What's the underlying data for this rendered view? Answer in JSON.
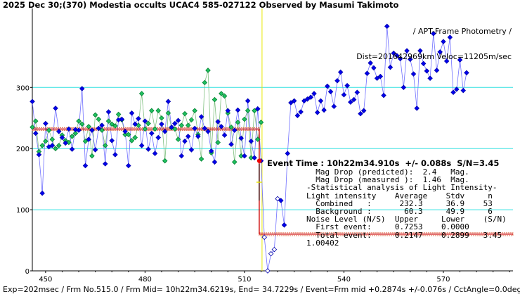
{
  "chart_data": {
    "type": "scatter",
    "title": "2025 Dec 30;(370) Modestia occults UCAC4 585-027122 Observed by Masumi Takimoto",
    "subtitle_lines": [
      "/ APT-Frame Photometry /",
      "Dist=201642969km Veloc=11205m/sec"
    ],
    "footer": "Exp=202msec / Frm No.515.0 / Frm Mid= 10h22m34.6219s, End= 34.7229s / Event=Frm mid +0.2874s +/-0.076s / CctAngle=0.0deg",
    "xlim": [
      446,
      591
    ],
    "ylim": [
      0,
      420
    ],
    "x_ticks": [
      450,
      480,
      510,
      540,
      570
    ],
    "y_ticks": [
      0,
      100,
      200,
      300
    ],
    "grid_y": true,
    "series": [
      {
        "role": "combined",
        "color": "#0000ff",
        "x": [
          446,
          447,
          448,
          449,
          450,
          451,
          452,
          453,
          454,
          455,
          456,
          457,
          458,
          459,
          460,
          461,
          462,
          463,
          464,
          465,
          466,
          467,
          468,
          469,
          470,
          471,
          472,
          473,
          474,
          475,
          476,
          477,
          478,
          479,
          480,
          481,
          482,
          483,
          484,
          485,
          486,
          487,
          488,
          489,
          490,
          491,
          492,
          493,
          494,
          495,
          496,
          497,
          498,
          499,
          500,
          501,
          502,
          503,
          504,
          505,
          506,
          507,
          508,
          509,
          510,
          511,
          512,
          513,
          514,
          515,
          516,
          517,
          518,
          519,
          520,
          521,
          522,
          523,
          524,
          525,
          526,
          527,
          528,
          529,
          530,
          531,
          532,
          533,
          534,
          535,
          536,
          537,
          538,
          539,
          540,
          541,
          542,
          543,
          544,
          545,
          546,
          547,
          548,
          549,
          550,
          551,
          552,
          553,
          554,
          555,
          556,
          557,
          558,
          559,
          560,
          561,
          562,
          563,
          564,
          565,
          566,
          567,
          568,
          569,
          570,
          571,
          572,
          573,
          574,
          575,
          576,
          577,
          578,
          579,
          580,
          581,
          582,
          583,
          584,
          585,
          586,
          587,
          588,
          589,
          590
        ],
        "y": [
          277,
          225,
          190,
          127,
          241,
          203,
          205,
          266,
          228,
          218,
          209,
          232,
          199,
          231,
          230,
          298,
          172,
          215,
          230,
          198,
          233,
          238,
          175,
          260,
          213,
          190,
          247,
          248,
          228,
          172,
          258,
          240,
          249,
          205,
          245,
          199,
          225,
          192,
          218,
          240,
          228,
          277,
          235,
          241,
          246,
          188,
          212,
          220,
          198,
          233,
          220,
          252,
          233,
          228,
          196,
          178,
          244,
          236,
          222,
          262,
          207,
          230,
          263,
          217,
          188,
          278,
          212,
          185,
          265,
          180,
          178,
          160,
          210,
          195,
          225,
          225,
          92,
          258,
          249,
          286,
          282,
          294,
          245,
          259,
          272,
          295,
          292,
          316,
          270,
          260,
          345,
          278,
          310,
          343,
          357,
          305,
          320,
          263,
          278,
          320,
          248,
          270,
          335,
          323,
          330,
          277,
          398,
          332,
          292,
          357,
          348,
          349,
          318,
          341,
          300,
          346,
          318,
          313,
          340,
          302,
          262,
          318,
          358,
          361,
          329,
          331,
          383,
          323,
          363,
          381,
          320,
          383,
          344,
          345,
          330,
          285,
          295,
          298,
          280,
          335,
          345,
          335,
          355,
          347,
          358
        ],
        "comment": "placeholder"
      }
    ]
  }
}
